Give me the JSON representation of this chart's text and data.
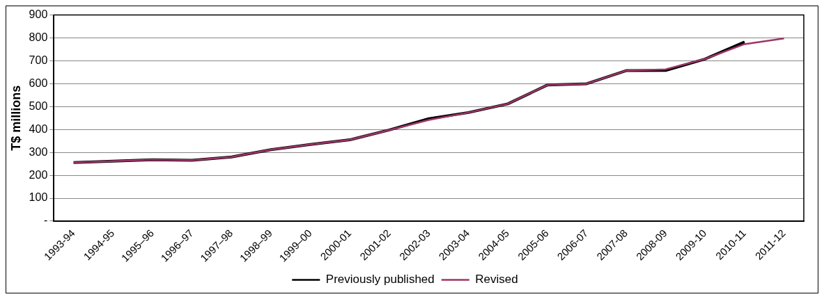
{
  "chart_data": {
    "type": "line",
    "ylabel": "T$ millions",
    "categories": [
      "1993-94",
      "1994-95",
      "1995–96",
      "1996–97",
      "1997–98",
      "1998–99",
      "1999–00",
      "2000-01",
      "2001-02",
      "2002-03",
      "2003-04",
      "2004-05",
      "2005-06",
      "2006-07",
      "2007-08",
      "2008-09",
      "2009-10",
      "2010-11",
      "2011-12"
    ],
    "series": [
      {
        "name": "Previously published",
        "color": "#000000",
        "values": [
          256,
          262,
          268,
          266,
          280,
          312,
          335,
          355,
          398,
          447,
          474,
          512,
          594,
          600,
          657,
          658,
          708,
          782,
          null
        ]
      },
      {
        "name": "Revised",
        "color": "#9e3567",
        "values": [
          256,
          262,
          268,
          266,
          280,
          312,
          335,
          355,
          398,
          442,
          474,
          512,
          594,
          600,
          657,
          663,
          708,
          773,
          798
        ]
      }
    ],
    "ylim": [
      0,
      900
    ],
    "yticks": [
      {
        "value": 0,
        "label": "-"
      },
      100,
      200,
      300,
      400,
      500,
      600,
      700,
      800,
      900
    ],
    "grid": "y",
    "legend": "bottom",
    "marker": "none",
    "line_style": "solid"
  }
}
